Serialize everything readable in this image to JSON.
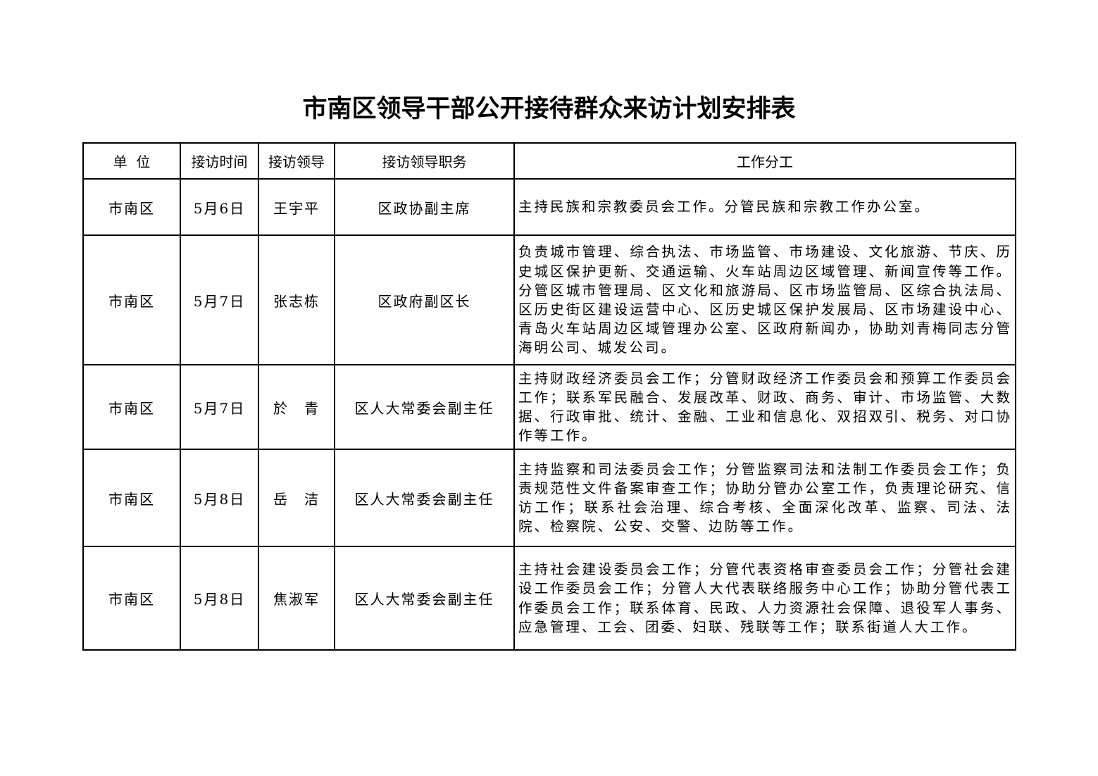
{
  "title": "市南区领导干部公开接待群众来访计划安排表",
  "headers": [
    "单  位",
    "接访时间",
    "接访领导",
    "接访领导职务",
    "工作分工"
  ],
  "rows": [
    {
      "unit": "市南区",
      "date": "5月6日",
      "leader": "王宇平",
      "position": "区政协副主席",
      "duty": "主持民族和宗教委员会工作。分管民族和宗教工作办公室。"
    },
    {
      "unit": "市南区",
      "date": "5月7日",
      "leader": "张志栋",
      "position": "区政府副区长",
      "duty": "负责城市管理、综合执法、市场监管、市场建设、文化旅游、节庆、历史城区保护更新、交通运输、火车站周边区域管理、新闻宣传等工作。分管区城市管理局、区文化和旅游局、区市场监管局、区综合执法局、区历史街区建设运营中心、区历史城区保护发展局、区市场建设中心、青岛火车站周边区域管理办公室、区政府新闻办，协助刘青梅同志分管海明公司、城发公司。"
    },
    {
      "unit": "市南区",
      "date": "5月7日",
      "leader": "於　青",
      "position": "区人大常委会副主任",
      "duty": "主持财政经济委员会工作；分管财政经济工作委员会和预算工作委员会工作；联系军民融合、发展改革、财政、商务、审计、市场监管、大数据、行政审批、统计、金融、工业和信息化、双招双引、税务、对口协作等工作。"
    },
    {
      "unit": "市南区",
      "date": "5月8日",
      "leader": "岳　洁",
      "position": "区人大常委会副主任",
      "duty": "主持监察和司法委员会工作；分管监察司法和法制工作委员会工作；负责规范性文件备案审查工作；协助分管办公室工作，负责理论研究、信访工作；联系社会治理、综合考核、全面深化改革、监察、司法、法院、检察院、公安、交警、边防等工作。"
    },
    {
      "unit": "市南区",
      "date": "5月8日",
      "leader": "焦淑军",
      "position": "区人大常委会副主任",
      "duty": "主持社会建设委员会工作；分管代表资格审查委员会工作；分管社会建设工作委员会工作；分管人大代表联络服务中心工作；协助分管代表工作委员会工作；联系体育、民政、人力资源社会保障、退役军人事务、应急管理、工会、团委、妇联、残联等工作；联系街道人大工作。"
    }
  ]
}
